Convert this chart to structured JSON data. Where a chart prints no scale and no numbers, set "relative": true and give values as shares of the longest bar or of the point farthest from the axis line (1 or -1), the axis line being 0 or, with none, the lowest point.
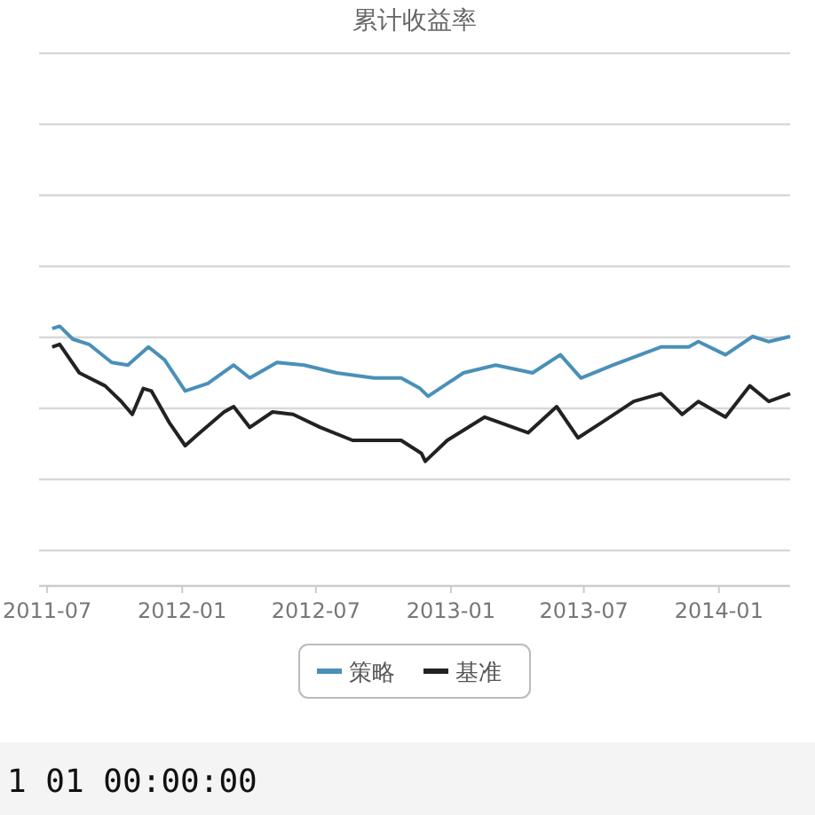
{
  "chart_data": {
    "type": "line",
    "title": "累计收益率",
    "relative": true,
    "grid": "y",
    "legend": "bottom",
    "xlim": [
      "2011-06-20",
      "2014-04-08"
    ],
    "xticks": [
      "2011-07",
      "2012-01",
      "2012-07",
      "2013-01",
      "2013-07",
      "2014-01"
    ],
    "annotations": [
      "1 01 00:00:00"
    ],
    "series": [
      {
        "name": "策略",
        "color": "#4a90b8",
        "x": [
          "2011-07-08",
          "2011-07-18",
          "2011-08-05",
          "2011-08-27",
          "2011-09-27",
          "2011-10-19",
          "2011-11-16",
          "2011-12-08",
          "2012-01-05",
          "2012-02-05",
          "2012-03-11",
          "2012-04-02",
          "2012-05-09",
          "2012-06-15",
          "2012-07-29",
          "2012-09-18",
          "2012-10-25",
          "2012-11-20",
          "2012-12-01",
          "2013-01-18",
          "2013-03-03",
          "2013-04-22",
          "2013-05-30",
          "2013-06-27",
          "2013-08-10",
          "2013-10-14",
          "2013-11-21",
          "2013-12-04",
          "2014-01-10",
          "2014-02-16",
          "2014-03-10",
          "2014-04-08"
        ],
        "values": [
          0.99,
          1.0,
          0.95,
          0.93,
          0.86,
          0.85,
          0.92,
          0.87,
          0.75,
          0.78,
          0.85,
          0.8,
          0.86,
          0.85,
          0.82,
          0.8,
          0.8,
          0.76,
          0.73,
          0.82,
          0.85,
          0.82,
          0.89,
          0.8,
          0.85,
          0.92,
          0.92,
          0.94,
          0.89,
          0.96,
          0.94,
          0.96
        ]
      },
      {
        "name": "基准",
        "color": "#222222",
        "x": [
          "2011-07-08",
          "2011-07-18",
          "2011-08-14",
          "2011-09-18",
          "2011-10-10",
          "2011-10-25",
          "2011-11-09",
          "2011-11-20",
          "2011-12-14",
          "2012-01-05",
          "2012-01-21",
          "2012-02-27",
          "2012-03-11",
          "2012-04-02",
          "2012-05-03",
          "2012-05-31",
          "2012-07-07",
          "2012-08-20",
          "2012-09-24",
          "2012-10-25",
          "2012-11-22",
          "2012-11-27",
          "2012-12-27",
          "2013-02-16",
          "2013-04-16",
          "2013-05-25",
          "2013-06-23",
          "2013-07-26",
          "2013-09-07",
          "2013-10-14",
          "2013-11-12",
          "2013-12-04",
          "2014-01-10",
          "2014-02-12",
          "2014-03-10",
          "2014-04-08"
        ],
        "values": [
          0.92,
          0.93,
          0.82,
          0.77,
          0.71,
          0.66,
          0.76,
          0.75,
          0.63,
          0.54,
          0.58,
          0.67,
          0.69,
          0.61,
          0.67,
          0.66,
          0.61,
          0.56,
          0.56,
          0.56,
          0.51,
          0.48,
          0.56,
          0.65,
          0.59,
          0.69,
          0.57,
          0.63,
          0.71,
          0.74,
          0.66,
          0.71,
          0.65,
          0.77,
          0.71,
          0.74
        ]
      }
    ]
  }
}
